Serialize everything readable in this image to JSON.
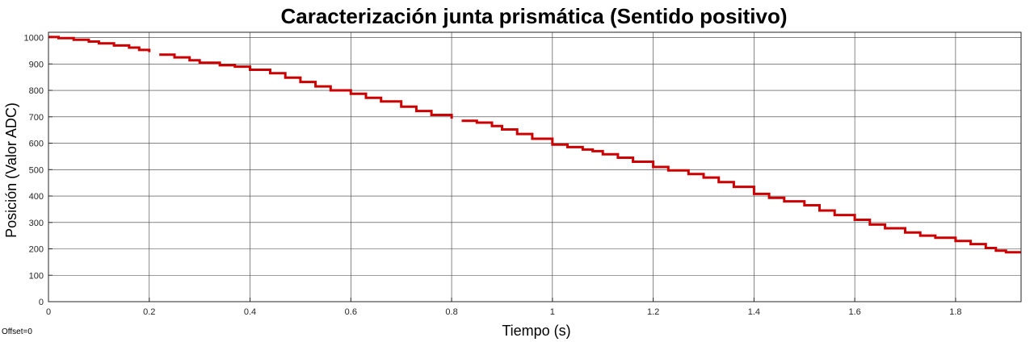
{
  "chart_data": {
    "type": "line",
    "title": "Caracterización junta prismática (Sentido positivo)",
    "xlabel": "Tiempo (s)",
    "ylabel": "Posición (Valor ADC)",
    "xlim": [
      0,
      1.93
    ],
    "ylim": [
      0,
      1020
    ],
    "xticks": [
      0,
      0.2,
      0.4,
      0.6,
      0.8,
      1,
      1.2,
      1.4,
      1.6,
      1.8
    ],
    "xtick_labels": [
      "0",
      "0.2",
      "0.4",
      "0.6",
      "0.8",
      "1",
      "1.2",
      "1.4",
      "1.6",
      "1.8"
    ],
    "yticks": [
      0,
      100,
      200,
      300,
      400,
      500,
      600,
      700,
      800,
      900,
      1000
    ],
    "ytick_labels": [
      "0",
      "100",
      "200",
      "300",
      "400",
      "500",
      "600",
      "700",
      "800",
      "900",
      "1000"
    ],
    "grid": true,
    "series": [
      {
        "color": "#cc0000",
        "segments": [
          {
            "x": [
              0,
              0.02,
              0.05,
              0.08,
              0.1,
              0.13,
              0.16,
              0.18,
              0.2
            ],
            "y": [
              1002,
              998,
              992,
              985,
              978,
              970,
              962,
              953,
              945
            ]
          },
          {
            "x": [
              0.22,
              0.25,
              0.28,
              0.3,
              0.34,
              0.37,
              0.4,
              0.44,
              0.47,
              0.5,
              0.53,
              0.56,
              0.6,
              0.63,
              0.66,
              0.7,
              0.73,
              0.76,
              0.8
            ],
            "y": [
              935,
              925,
              914,
              905,
              895,
              890,
              878,
              865,
              848,
              832,
              815,
              800,
              787,
              772,
              758,
              738,
              722,
              707,
              693
            ]
          },
          {
            "x": [
              0.82,
              0.85,
              0.88,
              0.9,
              0.93,
              0.96,
              1,
              1.03,
              1.06,
              1.08,
              1.1,
              1.13,
              1.16,
              1.2,
              1.23,
              1.27,
              1.3,
              1.33,
              1.36,
              1.4,
              1.43,
              1.46,
              1.5,
              1.53,
              1.56,
              1.6,
              1.63,
              1.66,
              1.7,
              1.73,
              1.76,
              1.8,
              1.83,
              1.86,
              1.88,
              1.9,
              1.93
            ],
            "y": [
              685,
              678,
              665,
              652,
              635,
              617,
              595,
              585,
              576,
              570,
              558,
              545,
              530,
              510,
              497,
              483,
              470,
              453,
              435,
              408,
              393,
              380,
              365,
              345,
              328,
              310,
              292,
              278,
              262,
              250,
              242,
              230,
              218,
              203,
              193,
              187,
              187
            ]
          }
        ]
      }
    ]
  },
  "footer": {
    "offset_text": "Offset=0"
  }
}
